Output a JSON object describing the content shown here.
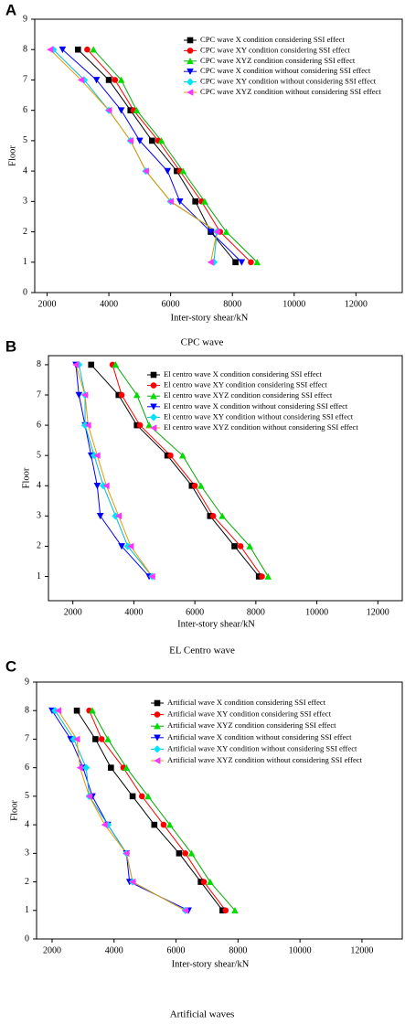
{
  "chart_data": [
    {
      "type": "line",
      "panel": "A",
      "caption": "CPC wave",
      "x_label": "Inter-story shear/kN",
      "y_label": "Floor",
      "xlim": [
        1600,
        13500
      ],
      "xticks": [
        2000,
        4000,
        6000,
        8000,
        10000,
        12000
      ],
      "ylim": [
        0,
        9
      ],
      "yticks": [
        0,
        1,
        2,
        3,
        4,
        5,
        6,
        7,
        8,
        9
      ],
      "floors": [
        1,
        2,
        3,
        4,
        5,
        6,
        7,
        8
      ],
      "series": [
        {
          "name": "CPC wave X condition considering SSI effect",
          "color": "#000000",
          "line_color": "#000000",
          "marker": "square",
          "values": [
            8100,
            7300,
            6800,
            6200,
            5400,
            4700,
            4000,
            3000
          ]
        },
        {
          "name": "CPC wave XY condition considering SSI effect",
          "color": "#ff0000",
          "line_color": "#ff0000",
          "marker": "circle",
          "values": [
            8600,
            7600,
            7000,
            6300,
            5600,
            4800,
            4200,
            3300
          ]
        },
        {
          "name": "CPC wave XYZ condition considering SSI effect",
          "color": "#00dd00",
          "line_color": "#00aa00",
          "marker": "triangle-up",
          "values": [
            8800,
            7800,
            7100,
            6400,
            5700,
            4900,
            4400,
            3500
          ]
        },
        {
          "name": "CPC wave X condition without considering SSI effect",
          "color": "#0000ff",
          "line_color": "#0000ff",
          "marker": "triangle-down",
          "values": [
            8300,
            7300,
            6300,
            5900,
            5000,
            4400,
            3600,
            2500
          ]
        },
        {
          "name": "CPC wave XY condition without considering SSI effect",
          "color": "#00e5ff",
          "line_color": "#00bcd4",
          "marker": "diamond",
          "values": [
            7400,
            7500,
            6000,
            5200,
            4700,
            4000,
            3200,
            2200
          ]
        },
        {
          "name": "CPC wave XYZ condition without considering SSI effect",
          "color": "#ff33ff",
          "line_color": "#e69900",
          "marker": "triangle-left",
          "values": [
            7300,
            7500,
            6000,
            5200,
            4700,
            4000,
            3100,
            2100
          ]
        }
      ]
    },
    {
      "type": "line",
      "panel": "B",
      "caption": "EL Centro wave",
      "x_label": "Inter-story shear/kN",
      "y_label": "Floor",
      "xlim": [
        1200,
        12800
      ],
      "xticks": [
        2000,
        4000,
        6000,
        8000,
        10000,
        12000
      ],
      "ylim": [
        0.2,
        8.3
      ],
      "yticks": [
        1,
        2,
        3,
        4,
        5,
        6,
        7,
        8
      ],
      "floors": [
        1,
        2,
        3,
        4,
        5,
        6,
        7,
        8
      ],
      "series": [
        {
          "name": "El centro wave X condition considering SSI effect",
          "color": "#000000",
          "line_color": "#000000",
          "marker": "square",
          "values": [
            8100,
            7300,
            6500,
            5900,
            5100,
            4100,
            3500,
            2600
          ]
        },
        {
          "name": "El centro wave XY condition considering SSI effect",
          "color": "#ff0000",
          "line_color": "#ff0000",
          "marker": "circle",
          "values": [
            8200,
            7500,
            6600,
            6000,
            5200,
            4200,
            3600,
            3300
          ]
        },
        {
          "name": "El centro wave XYZ condition considering SSI effect",
          "color": "#00dd00",
          "line_color": "#00aa00",
          "marker": "triangle-up",
          "values": [
            8400,
            7800,
            6900,
            6200,
            5600,
            4500,
            4100,
            3400
          ]
        },
        {
          "name": "El centro wave X condition without considering SSI effect",
          "color": "#0000ff",
          "line_color": "#0000ff",
          "marker": "triangle-down",
          "values": [
            4500,
            3600,
            2900,
            2800,
            2600,
            2400,
            2200,
            2100
          ]
        },
        {
          "name": "El centro wave XY condition without considering SSI effect",
          "color": "#00e5ff",
          "line_color": "#00bcd4",
          "marker": "diamond",
          "values": [
            4600,
            3800,
            3400,
            3000,
            2700,
            2400,
            2400,
            2200
          ]
        },
        {
          "name": "El centro wave XYZ condition without considering SSI effect",
          "color": "#ff33ff",
          "line_color": "#e69900",
          "marker": "triangle-left",
          "values": [
            4600,
            3900,
            3500,
            3100,
            2800,
            2500,
            2400,
            2100
          ]
        }
      ]
    },
    {
      "type": "line",
      "panel": "C",
      "caption": "Artificial waves",
      "x_label": "Inter-story shear/kN",
      "y_label": "Floor",
      "xlim": [
        1500,
        13300
      ],
      "xticks": [
        2000,
        4000,
        6000,
        8000,
        10000,
        12000
      ],
      "ylim": [
        0,
        9
      ],
      "yticks": [
        0,
        1,
        2,
        3,
        4,
        5,
        6,
        7,
        8,
        9
      ],
      "floors": [
        1,
        2,
        3,
        4,
        5,
        6,
        7,
        8
      ],
      "series": [
        {
          "name": "Artificial wave X condition considering SSI effect",
          "color": "#000000",
          "line_color": "#000000",
          "marker": "square",
          "values": [
            7500,
            6800,
            6100,
            5300,
            4600,
            3900,
            3400,
            2800
          ]
        },
        {
          "name": "Artificial wave XY condition considering SSI effect",
          "color": "#ff0000",
          "line_color": "#ff0000",
          "marker": "circle",
          "values": [
            7600,
            6900,
            6300,
            5600,
            4900,
            4300,
            3600,
            3200
          ]
        },
        {
          "name": "Artificial wave XYZ condition considering SSI effect",
          "color": "#00dd00",
          "line_color": "#00aa00",
          "marker": "triangle-up",
          "values": [
            7900,
            7100,
            6500,
            5800,
            5100,
            4400,
            3800,
            3300
          ]
        },
        {
          "name": "Artificial wave X condition without considering SSI effect",
          "color": "#0000ff",
          "line_color": "#0000ff",
          "marker": "triangle-down",
          "values": [
            6400,
            4500,
            4400,
            3800,
            3300,
            3000,
            2600,
            2000
          ]
        },
        {
          "name": "Artificial wave XY condition without considering SSI effect",
          "color": "#00e5ff",
          "line_color": "#00bcd4",
          "marker": "diamond",
          "values": [
            6300,
            4600,
            4400,
            3800,
            3200,
            3100,
            2700,
            2100
          ]
        },
        {
          "name": "Artificial wave XYZ condition without considering SSI effect",
          "color": "#ff33ff",
          "line_color": "#e69900",
          "marker": "triangle-left",
          "values": [
            6300,
            4600,
            4400,
            3700,
            3200,
            2900,
            2800,
            2200
          ]
        }
      ]
    }
  ]
}
